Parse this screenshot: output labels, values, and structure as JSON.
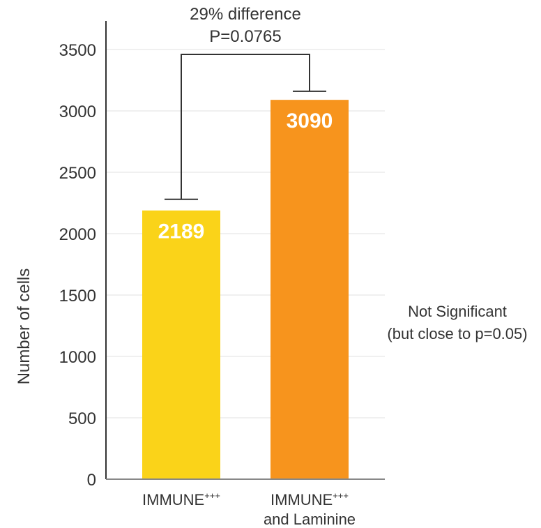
{
  "chart_data": {
    "type": "bar",
    "categories": [
      {
        "main": "IMMUNE",
        "sup": "+++",
        "line2": ""
      },
      {
        "main": "IMMUNE",
        "sup": "+++",
        "line2": "and Laminine"
      }
    ],
    "values": [
      2189,
      3090
    ],
    "value_labels": [
      "2189",
      "3090"
    ],
    "error_bars": [
      2280,
      3160
    ],
    "bar_colors": [
      "#fad319",
      "#f7941d"
    ],
    "ylabel": "Number of cells",
    "xlabel": "",
    "ylim": [
      0,
      3700
    ],
    "yticks": [
      0,
      500,
      1000,
      1500,
      2000,
      2500,
      3000,
      3500
    ],
    "grid": true,
    "comparison": {
      "line1": "29% difference",
      "line2": "P=0.0765",
      "bracket_top": 3500
    },
    "note": {
      "line1": "Not Significant",
      "line2": "(but close to p=0.05)"
    }
  }
}
